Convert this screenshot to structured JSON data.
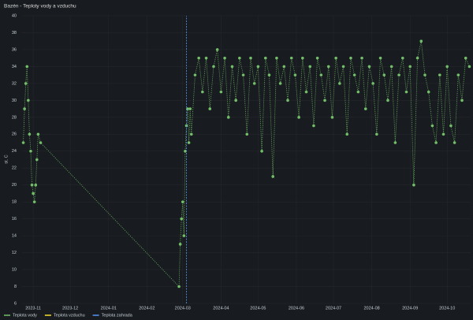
{
  "chart_data": {
    "type": "line",
    "title": "Bazén - Teploty vody a vzduchu",
    "y_label": "st. C",
    "xlim": [
      "2023-10-23",
      "2024-10-20"
    ],
    "xticks": [
      "2023-11",
      "2023-12",
      "2024-01",
      "2024-02",
      "2024-03",
      "2024-04",
      "2024-05",
      "2024-06",
      "2024-07",
      "2024-08",
      "2024-09",
      "2024-10"
    ],
    "ylim": [
      6,
      40
    ],
    "yticks": [
      6,
      8,
      10,
      12,
      14,
      16,
      18,
      20,
      22,
      24,
      26,
      28,
      30,
      32,
      34,
      36,
      38,
      40
    ],
    "grid": true,
    "legend": "bottom-left",
    "series": [
      {
        "name": "Teplota vody",
        "color": "#73bf69",
        "x": [
          "2023-10-24",
          "2023-10-25",
          "2023-10-26",
          "2023-10-27",
          "2023-10-28",
          "2023-10-29",
          "2023-10-30",
          "2023-10-31",
          "2023-11-01",
          "2023-11-02",
          "2023-11-03",
          "2023-11-04",
          "2023-11-05",
          "2023-11-07",
          "2024-02-27",
          "2024-02-28",
          "2024-02-29",
          "2024-03-01",
          "2024-03-02",
          "2024-03-03",
          "2024-03-04",
          "2024-03-05",
          "2024-03-06",
          "2024-03-07",
          "2024-03-08",
          "2024-03-11",
          "2024-03-14",
          "2024-03-17",
          "2024-03-20",
          "2024-03-23",
          "2024-03-26",
          "2024-03-29",
          "2024-04-01",
          "2024-04-04",
          "2024-04-07",
          "2024-04-10",
          "2024-04-13",
          "2024-04-16",
          "2024-04-19",
          "2024-04-22",
          "2024-04-25",
          "2024-04-28",
          "2024-05-01",
          "2024-05-04",
          "2024-05-07",
          "2024-05-10",
          "2024-05-13",
          "2024-05-16",
          "2024-05-19",
          "2024-05-22",
          "2024-05-25",
          "2024-05-28",
          "2024-05-31",
          "2024-06-03",
          "2024-06-06",
          "2024-06-09",
          "2024-06-12",
          "2024-06-15",
          "2024-06-18",
          "2024-06-21",
          "2024-06-24",
          "2024-06-27",
          "2024-06-30",
          "2024-07-03",
          "2024-07-06",
          "2024-07-09",
          "2024-07-12",
          "2024-07-15",
          "2024-07-18",
          "2024-07-21",
          "2024-07-24",
          "2024-07-27",
          "2024-07-30",
          "2024-08-02",
          "2024-08-05",
          "2024-08-08",
          "2024-08-11",
          "2024-08-14",
          "2024-08-17",
          "2024-08-20",
          "2024-08-23",
          "2024-08-26",
          "2024-08-29",
          "2024-09-01",
          "2024-09-04",
          "2024-09-07",
          "2024-09-10",
          "2024-09-13",
          "2024-09-16",
          "2024-09-19",
          "2024-09-22",
          "2024-09-25",
          "2024-09-28",
          "2024-10-01",
          "2024-10-04",
          "2024-10-07",
          "2024-10-10",
          "2024-10-13",
          "2024-10-16",
          "2024-10-19"
        ],
        "values": [
          25,
          29,
          32,
          34,
          30,
          26,
          24,
          20,
          19,
          18,
          20,
          23,
          26,
          25,
          8,
          13,
          16,
          18,
          14,
          24,
          27,
          29,
          25,
          29,
          26,
          33,
          35,
          31,
          35,
          29,
          34,
          36,
          31,
          35,
          28,
          34,
          30,
          35,
          33,
          26,
          35,
          32,
          34,
          24,
          35,
          33,
          21,
          35,
          32,
          34,
          30,
          35,
          33,
          28,
          35,
          31,
          34,
          27,
          35,
          33,
          30,
          34,
          28,
          35,
          32,
          34,
          26,
          35,
          33,
          31,
          35,
          29,
          34,
          32,
          26,
          35,
          33,
          30,
          34,
          25,
          33,
          35,
          31,
          34,
          20,
          35,
          37,
          33,
          31,
          27,
          25,
          33,
          26,
          34,
          27,
          25,
          33,
          30,
          35,
          34
        ]
      },
      {
        "name": "Teplota vzduchu",
        "color": "#fade2a",
        "x": [],
        "values": []
      },
      {
        "name": "Teplota zahrada",
        "color": "#5794f2",
        "x": [
          "2024-03-04",
          "2024-03-04"
        ],
        "values": [
          6,
          40
        ]
      }
    ]
  }
}
